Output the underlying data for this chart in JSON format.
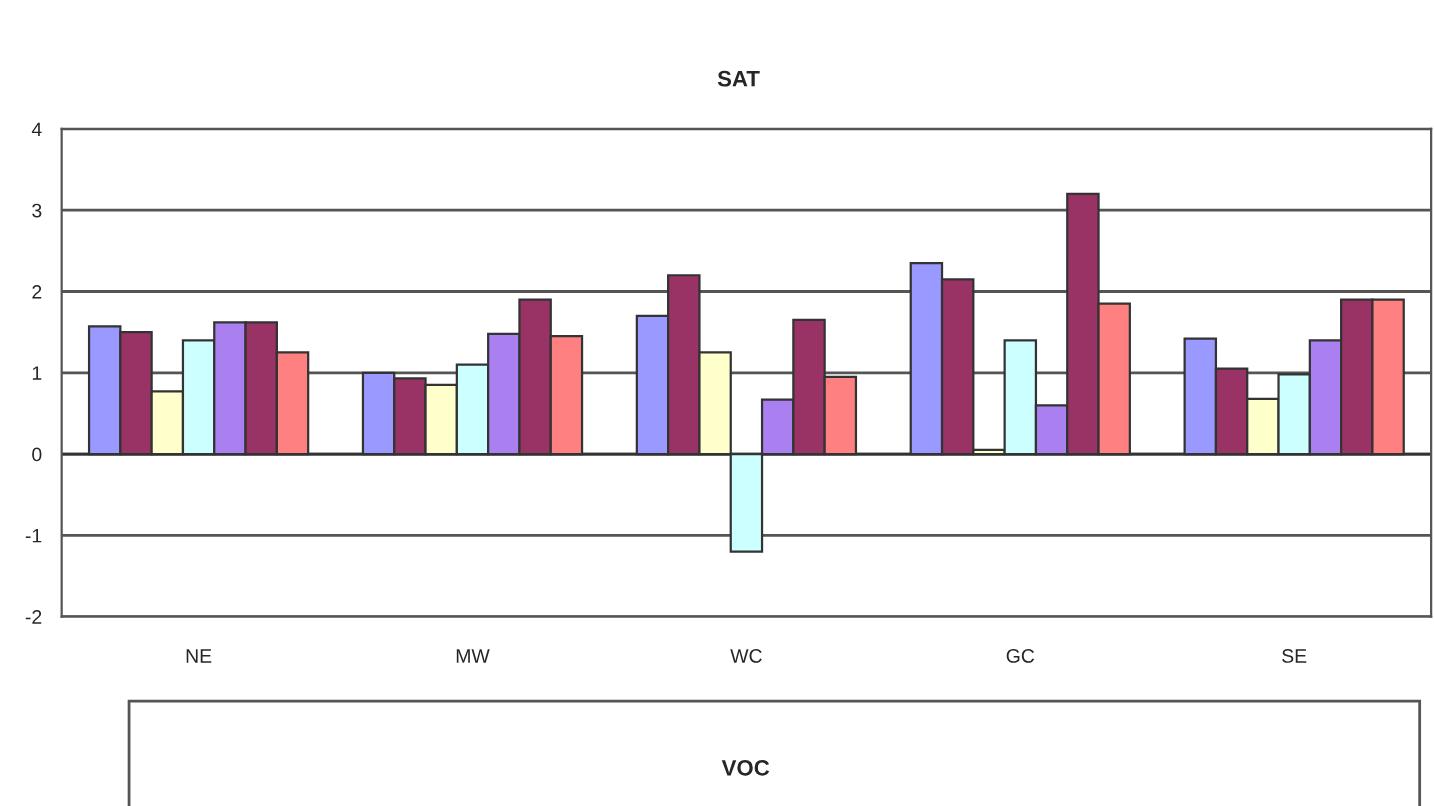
{
  "chart_data": {
    "type": "bar",
    "title": "SAT",
    "categories": [
      "NE",
      "MW",
      "WC",
      "GC",
      "SE"
    ],
    "series": [
      {
        "color": "#9999ff",
        "values": [
          1.57,
          1.0,
          1.7,
          2.35,
          1.42
        ]
      },
      {
        "color": "#993366",
        "values": [
          1.5,
          0.93,
          2.2,
          2.15,
          1.05
        ]
      },
      {
        "color": "#ffffcc",
        "values": [
          0.77,
          0.85,
          1.25,
          0.05,
          0.68
        ]
      },
      {
        "color": "#ccffff",
        "values": [
          1.4,
          1.1,
          -1.2,
          1.4,
          0.98
        ]
      },
      {
        "color": "#aa80f0",
        "values": [
          1.62,
          1.48,
          0.67,
          0.6,
          1.4
        ]
      },
      {
        "color": "#993366",
        "values": [
          1.62,
          1.9,
          1.65,
          3.2,
          1.9
        ]
      },
      {
        "color": "#ff8080",
        "values": [
          1.25,
          1.45,
          0.95,
          1.85,
          1.9
        ]
      }
    ],
    "ylim": [
      -2,
      4
    ],
    "yticks": [
      -2,
      -1,
      0,
      1,
      2,
      3,
      4
    ],
    "grid": "y",
    "legend": false,
    "annotations": [
      "VOC"
    ]
  }
}
